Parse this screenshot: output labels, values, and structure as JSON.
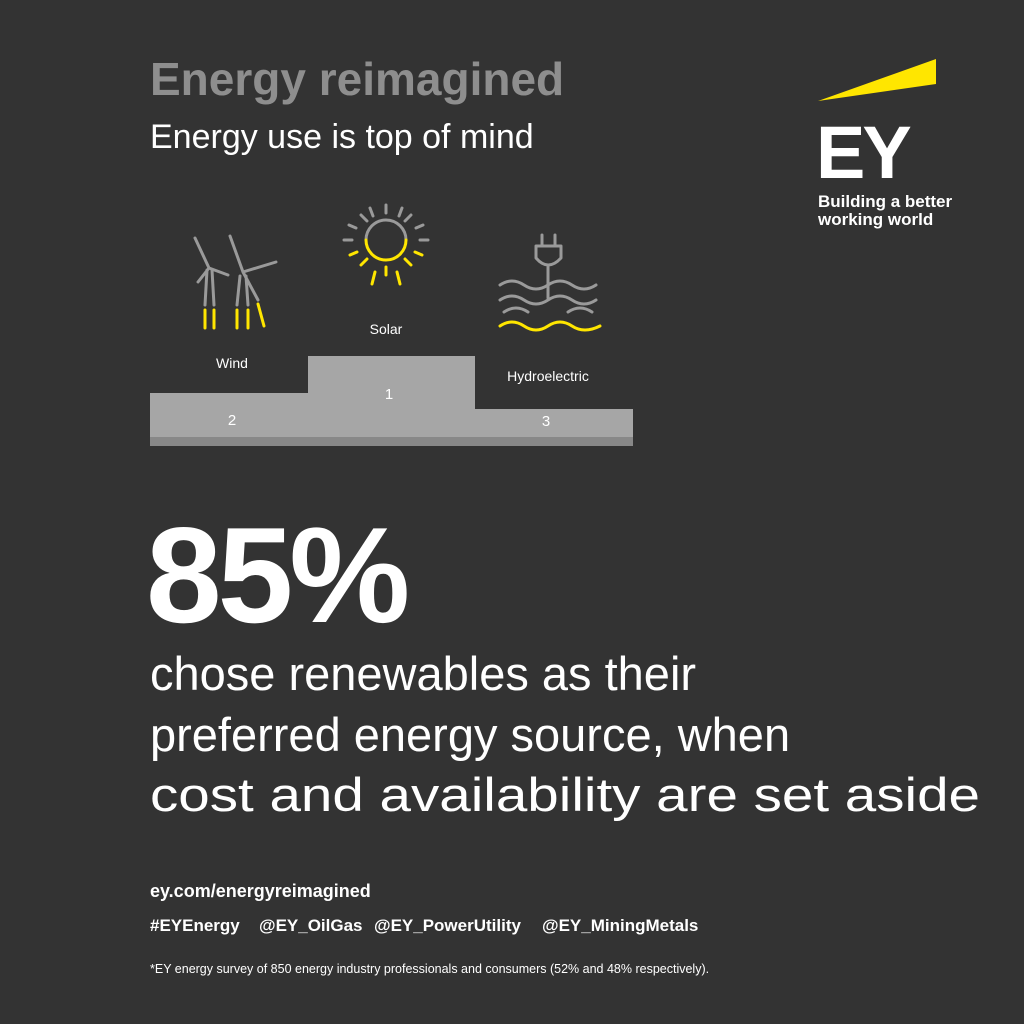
{
  "header": {
    "title": "Energy reimagined",
    "subtitle": "Energy use is top of mind"
  },
  "logo": {
    "mark": "EY",
    "tagline": [
      "Building a better",
      "working world"
    ]
  },
  "podium": [
    {
      "label": "Wind",
      "rank": "2"
    },
    {
      "label": "Solar",
      "rank": "1"
    },
    {
      "label": "Hydroelectric",
      "rank": "3"
    }
  ],
  "stat": {
    "value": "85%",
    "description": [
      "chose renewables as their",
      "preferred energy source, when",
      "cost and availability are set aside"
    ]
  },
  "footer": {
    "link": "ey.com/energyreimagined",
    "tags": [
      "#EYEnergy",
      "@EY_OilGas",
      "@EY_PowerUtility",
      "@EY_MiningMetals"
    ],
    "note": "*EY energy survey of 850 energy industry professionals and consumers (52% and 48% respectively)."
  }
}
